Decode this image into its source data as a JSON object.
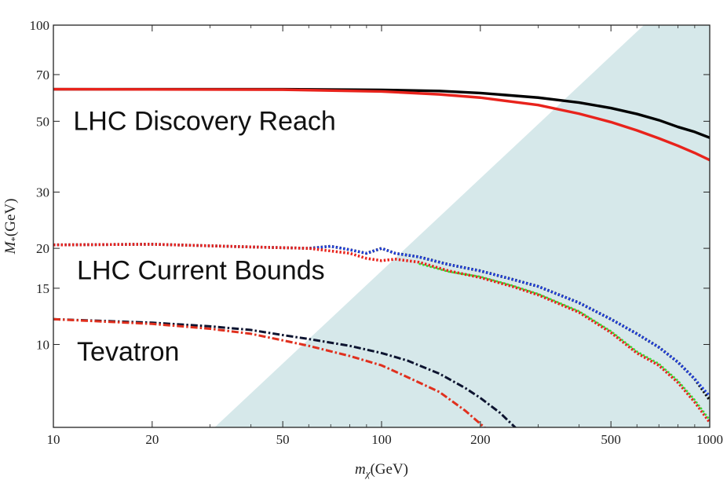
{
  "chart_data": {
    "type": "line",
    "xscale": "log",
    "yscale": "log",
    "xlim": [
      10,
      1000
    ],
    "ylim": [
      5.5,
      100
    ],
    "xlabel": "m",
    "xlabel_sub": "χ",
    "xlabel_unit": "(GeV)",
    "ylabel": "M",
    "ylabel_sub": "*",
    "ylabel_unit": "(GeV)",
    "xticks": [
      10,
      20,
      50,
      100,
      200,
      500,
      1000
    ],
    "xtick_labels": [
      "10",
      "20",
      "50",
      "100",
      "200",
      "500",
      "1000"
    ],
    "yticks": [
      10,
      15,
      20,
      30,
      50,
      70,
      100
    ],
    "ytick_labels": [
      "10",
      "15",
      "20",
      "30",
      "50",
      "70",
      "100"
    ],
    "annotations": [
      {
        "text": "LHC Discovery Reach",
        "x": 11.5,
        "y": 47
      },
      {
        "text": "LHC Current Bounds",
        "x": 11.8,
        "y": 16
      },
      {
        "text": "Tevatron",
        "x": 11.8,
        "y": 8.9
      }
    ],
    "shaded_region": {
      "color": "#d6e8ea",
      "boundary": [
        [
          31,
          5.5
        ],
        [
          630,
          100
        ]
      ]
    },
    "series": [
      {
        "name": "discovery-black",
        "color": "#000000",
        "style": "solid",
        "width": 3.4,
        "x": [
          10,
          50,
          100,
          150,
          200,
          300,
          400,
          500,
          600,
          700,
          800,
          900,
          1000
        ],
        "y": [
          63,
          63,
          62.7,
          62.2,
          61.3,
          59.3,
          57.2,
          55,
          52.7,
          50.4,
          48,
          46.3,
          44.4
        ]
      },
      {
        "name": "discovery-red",
        "color": "#e8231c",
        "style": "solid",
        "width": 3.4,
        "x": [
          10,
          50,
          100,
          150,
          200,
          300,
          400,
          500,
          600,
          700,
          800,
          900,
          1000
        ],
        "y": [
          63,
          62.8,
          62,
          60.7,
          59.3,
          56.2,
          52.8,
          49.7,
          46.8,
          44.2,
          41.9,
          39.8,
          37.8
        ]
      },
      {
        "name": "current-black",
        "color": "#111111",
        "style": "dotted",
        "width": 3.6,
        "x": [
          10,
          20,
          40,
          60,
          70,
          80,
          90,
          100,
          110,
          130,
          160,
          200,
          250,
          300,
          400,
          500,
          600,
          700,
          800,
          900,
          1000
        ],
        "y": [
          20.5,
          20.6,
          20.2,
          20,
          20.3,
          19.8,
          19.3,
          20,
          19.3,
          18.8,
          17.8,
          17,
          16,
          15.2,
          13.5,
          12,
          10.8,
          9.8,
          8.8,
          7.8,
          6.7
        ]
      },
      {
        "name": "current-blue",
        "color": "#1f3fe0",
        "style": "dotted",
        "width": 3,
        "x": [
          10,
          20,
          40,
          60,
          70,
          80,
          90,
          100,
          110,
          130,
          160,
          200,
          250,
          300,
          400,
          500,
          600,
          700,
          800,
          900,
          1000
        ],
        "y": [
          20.5,
          20.6,
          20.2,
          20,
          20.3,
          19.8,
          19.3,
          20,
          19.3,
          18.8,
          17.8,
          17,
          16,
          15.2,
          13.5,
          12,
          10.8,
          9.8,
          8.8,
          7.8,
          6.9
        ]
      },
      {
        "name": "current-red",
        "color": "#e8231c",
        "style": "dotted",
        "width": 3.6,
        "x": [
          10,
          20,
          40,
          60,
          80,
          90,
          100,
          110,
          130,
          160,
          200,
          250,
          300,
          400,
          500,
          600,
          700,
          800,
          900,
          1000
        ],
        "y": [
          20.5,
          20.6,
          20.2,
          20,
          19.3,
          18.6,
          18.3,
          18.5,
          18.1,
          17,
          16.2,
          15.2,
          14.3,
          12.6,
          10.9,
          9.4,
          8.6,
          7.6,
          6.6,
          5.7
        ]
      },
      {
        "name": "current-green",
        "color": "#33dd33",
        "style": "dotted",
        "width": 2.6,
        "x": [
          130,
          160,
          200,
          250,
          300,
          400,
          500,
          600,
          700,
          800,
          900,
          1000
        ],
        "y": [
          17.9,
          16.9,
          16.3,
          15.3,
          14.4,
          12.7,
          11,
          9.5,
          8.7,
          7.7,
          6.7,
          5.8
        ]
      },
      {
        "name": "tevatron-black",
        "color": "#0d1430",
        "style": "dashdot",
        "width": 3,
        "x": [
          10,
          20,
          30,
          40,
          50,
          60,
          80,
          100,
          120,
          150,
          180,
          200,
          230,
          260
        ],
        "y": [
          12,
          11.7,
          11.4,
          11.1,
          10.7,
          10.4,
          9.9,
          9.4,
          8.9,
          8.1,
          7.3,
          6.8,
          6.1,
          5.4
        ]
      },
      {
        "name": "tevatron-red",
        "color": "#e0301e",
        "style": "dashdot",
        "width": 3,
        "x": [
          10,
          20,
          30,
          40,
          50,
          60,
          80,
          100,
          120,
          150,
          180,
          210
        ],
        "y": [
          12,
          11.6,
          11.2,
          10.8,
          10.3,
          9.9,
          9.2,
          8.6,
          7.9,
          7.1,
          6.2,
          5.4
        ]
      }
    ]
  }
}
